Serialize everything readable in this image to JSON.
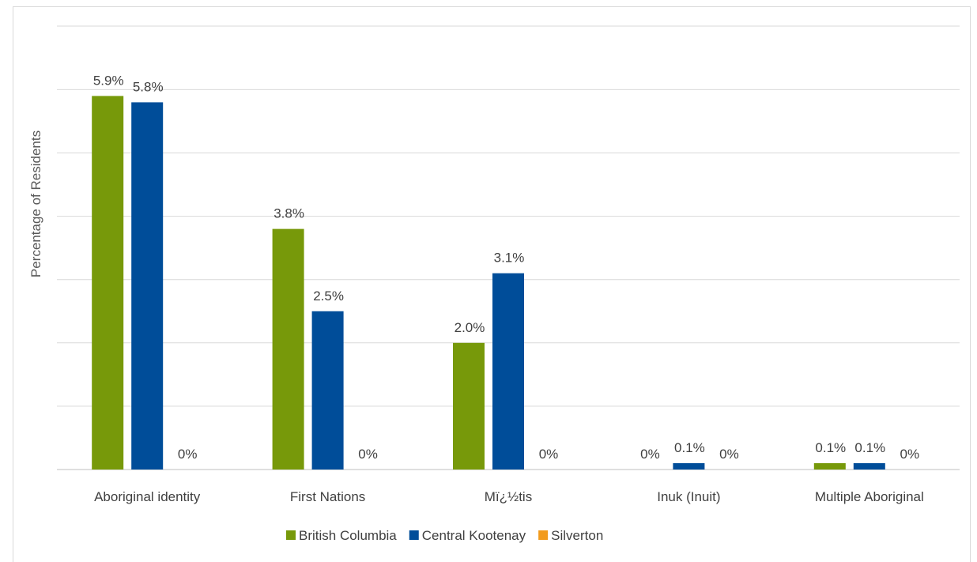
{
  "chart_data": {
    "type": "bar",
    "title": "",
    "xlabel": "",
    "ylabel": "Percentage of Residents",
    "ylim": [
      0,
      6
    ],
    "grid": true,
    "legend_position": "bottom",
    "categories": [
      "Aboriginal identity",
      "First Nations",
      "Mï¿½tis",
      "Inuk (Inuit)",
      "Multiple Aboriginal"
    ],
    "series": [
      {
        "name": "British Columbia",
        "color": "#77990a",
        "values": [
          5.9,
          3.8,
          2.0,
          0,
          0.1
        ],
        "labels": [
          "5.9%",
          "3.8%",
          "2.0%",
          "0%",
          "0.1%"
        ]
      },
      {
        "name": "Central Kootenay",
        "color": "#004d99",
        "values": [
          5.8,
          2.5,
          3.1,
          0.1,
          0.1
        ],
        "labels": [
          "5.8%",
          "2.5%",
          "3.1%",
          "0.1%",
          "0.1%"
        ]
      },
      {
        "name": "Silverton",
        "color": "#f29b1d",
        "values": [
          0,
          0,
          0,
          0,
          0
        ],
        "labels": [
          "0%",
          "0%",
          "0%",
          "0%",
          "0%"
        ]
      }
    ]
  }
}
